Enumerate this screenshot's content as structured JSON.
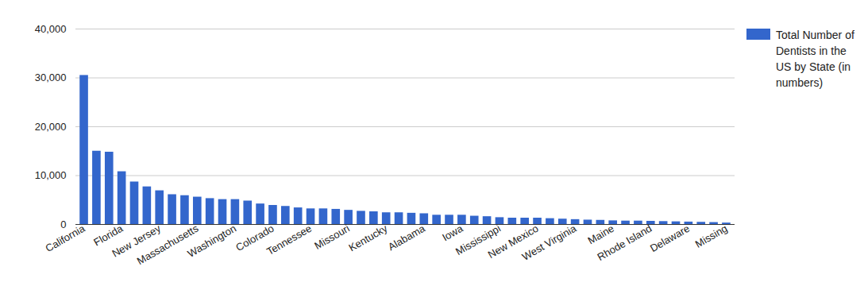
{
  "chart_data": {
    "type": "bar",
    "categories": [
      "California",
      null,
      null,
      "Florida",
      null,
      null,
      "New Jersey",
      null,
      null,
      "Massachusetts",
      null,
      null,
      "Washington",
      null,
      null,
      "Colorado",
      null,
      null,
      "Tennessee",
      null,
      null,
      "Missouri",
      null,
      null,
      "Kentucky",
      null,
      null,
      "Alabama",
      null,
      null,
      "Iowa",
      null,
      null,
      "Mississippi",
      null,
      null,
      "New Mexico",
      null,
      null,
      "West Virginia",
      null,
      null,
      "Maine",
      null,
      null,
      "Rhode Island",
      null,
      null,
      "Delaware",
      null,
      null,
      "Missing"
    ],
    "series": [
      {
        "name": "Total Number of Dentists in the US by State (in numbers)",
        "color": "#3366cc",
        "values": [
          30500,
          15000,
          14800,
          10800,
          8700,
          7700,
          6900,
          6100,
          5900,
          5600,
          5300,
          5100,
          5100,
          4800,
          4200,
          3900,
          3700,
          3400,
          3200,
          3200,
          3100,
          2900,
          2700,
          2600,
          2400,
          2400,
          2300,
          2200,
          1900,
          1900,
          1900,
          1700,
          1600,
          1400,
          1300,
          1300,
          1300,
          1200,
          1100,
          1000,
          900,
          850,
          750,
          700,
          700,
          650,
          600,
          550,
          500,
          450,
          400,
          300
        ]
      }
    ],
    "ylim": [
      0,
      40000
    ],
    "yticks": [
      0,
      10000,
      20000,
      30000,
      40000
    ],
    "grid": true,
    "legend": "right"
  }
}
